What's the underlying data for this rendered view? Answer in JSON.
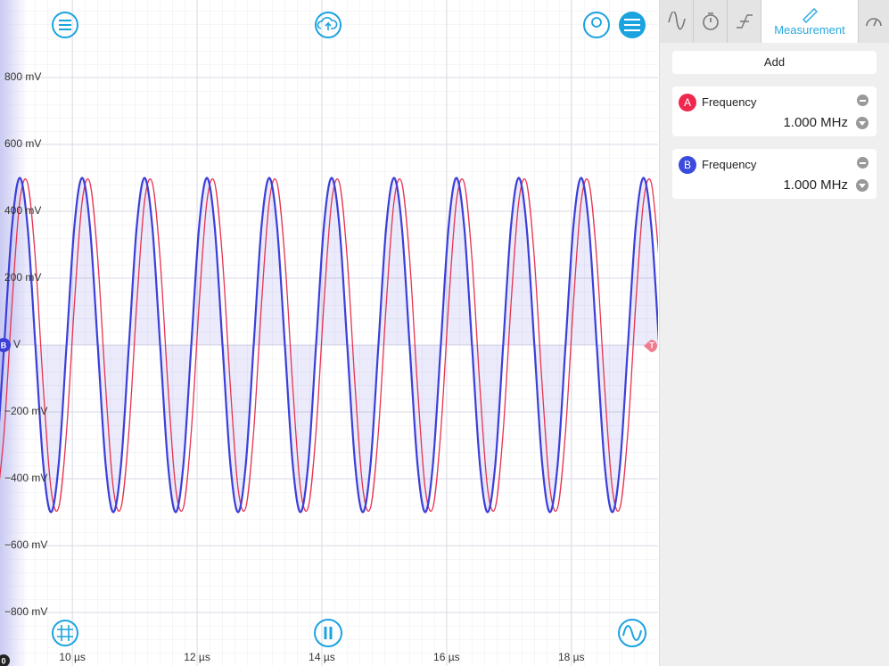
{
  "tabs": {
    "active": "Measurement"
  },
  "chart_data": {
    "type": "line",
    "x": [
      8.782,
      8.907,
      9.032,
      9.157,
      9.282,
      9.407,
      9.532,
      9.657,
      9.782,
      9.907,
      10.032,
      10.157,
      10.282,
      10.407,
      10.532,
      10.657,
      10.782,
      10.907,
      11.032,
      11.157,
      11.282,
      11.407,
      11.532,
      11.657,
      11.782,
      11.907,
      12.032,
      12.157,
      12.282,
      12.407,
      12.532,
      12.657,
      12.782,
      12.907,
      13.032,
      13.157,
      13.282,
      13.407,
      13.532,
      13.657,
      13.782,
      13.907,
      14.032,
      14.157,
      14.282,
      14.407,
      14.532,
      14.657,
      14.782,
      14.907,
      15.032,
      15.157,
      15.282,
      15.407,
      15.532,
      15.657,
      15.782,
      15.907,
      16.032,
      16.157,
      16.282,
      16.407,
      16.532,
      16.657,
      16.782,
      16.907,
      17.032,
      17.157,
      17.282,
      17.407,
      17.532,
      17.657,
      17.782,
      17.907,
      18.032,
      18.157,
      18.282,
      18.407,
      18.532,
      18.657,
      18.782,
      18.907,
      19.032,
      19.157,
      19.282,
      19.407
    ],
    "series": [
      {
        "name": "A",
        "color": "#e8334f",
        "values": [
          -485,
          -258,
          121,
          429,
          485,
          258,
          -121,
          -429,
          -485,
          -258,
          121,
          429,
          485,
          258,
          -121,
          -429,
          -485,
          -258,
          121,
          429,
          485,
          258,
          -121,
          -429,
          -485,
          -258,
          121,
          429,
          485,
          258,
          -121,
          -429,
          -485,
          -258,
          121,
          429,
          485,
          258,
          -121,
          -429,
          -485,
          -258,
          121,
          429,
          485,
          258,
          -121,
          -429,
          -485,
          -258,
          121,
          429,
          485,
          258,
          -121,
          -429,
          -485,
          -258,
          121,
          429,
          485,
          258,
          -121,
          -429,
          -485,
          -258,
          121,
          429,
          485,
          258,
          -121,
          -429,
          -485,
          -258,
          121,
          429,
          485,
          258,
          -121,
          -429,
          -485,
          -258,
          121,
          429,
          485,
          258
        ]
      },
      {
        "name": "B",
        "color": "#3b3fd8",
        "values": [
          -354,
          0,
          354,
          500,
          354,
          0,
          -354,
          -500,
          -354,
          0,
          354,
          500,
          354,
          0,
          -354,
          -500,
          -354,
          0,
          354,
          500,
          354,
          0,
          -354,
          -500,
          -354,
          0,
          354,
          500,
          354,
          0,
          -354,
          -500,
          -354,
          0,
          354,
          500,
          354,
          0,
          -354,
          -500,
          -354,
          0,
          354,
          500,
          354,
          0,
          -354,
          -500,
          -354,
          0,
          354,
          500,
          354,
          0,
          -354,
          -500,
          -354,
          0,
          354,
          500,
          354,
          0,
          -354,
          -500,
          -354,
          0,
          354,
          500,
          354,
          0,
          -354,
          -500,
          -354,
          0,
          354,
          500,
          354,
          0,
          -354,
          -500,
          -354,
          0,
          354,
          500,
          354,
          0
        ]
      }
    ],
    "xlim": [
      8.84,
      19.39
    ],
    "ylim": [
      -960,
      1032
    ],
    "xticks": [
      {
        "value": 10,
        "label": "10 µs"
      },
      {
        "value": 12,
        "label": "12 µs"
      },
      {
        "value": 14,
        "label": "14 µs"
      },
      {
        "value": 16,
        "label": "16 µs"
      },
      {
        "value": 18,
        "label": "18 µs"
      }
    ],
    "yticks": [
      {
        "value": 800,
        "label": "800 mV"
      },
      {
        "value": 600,
        "label": "600 mV"
      },
      {
        "value": 400,
        "label": "400 mV"
      },
      {
        "value": 200,
        "label": "200 mV"
      },
      {
        "value": 0,
        "label": "0 V"
      },
      {
        "value": -200,
        "label": "−200 mV"
      },
      {
        "value": -400,
        "label": "−400 mV"
      },
      {
        "value": -600,
        "label": "−600 mV"
      },
      {
        "value": -800,
        "label": "−800 mV"
      }
    ],
    "grid": true,
    "markers": {
      "channel": "B",
      "trigger": "T",
      "origin": "0"
    }
  },
  "panel": {
    "add": "Add",
    "measurements": [
      {
        "channel": "A",
        "name": "Frequency",
        "value": "1.000 MHz",
        "color": "#f0284f"
      },
      {
        "channel": "B",
        "name": "Frequency",
        "value": "1.000 MHz",
        "color": "#3b4bdc"
      }
    ]
  }
}
